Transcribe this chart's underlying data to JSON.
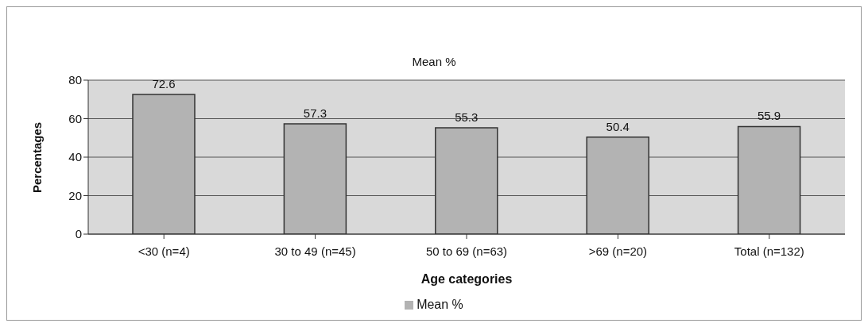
{
  "chart_data": {
    "type": "bar",
    "title": "Mean %",
    "xlabel": "Age categories",
    "ylabel": "Percentages",
    "categories": [
      "<30 (n=4)",
      "30 to 49 (n=45)",
      "50 to 69 (n=63)",
      ">69 (n=20)",
      "Total (n=132)"
    ],
    "series": [
      {
        "name": "Mean %",
        "color": "#b3b3b3",
        "values": [
          72.6,
          57.3,
          55.3,
          50.4,
          55.9
        ]
      }
    ],
    "ylim": [
      0,
      80
    ],
    "yticks": [
      0,
      20,
      40,
      60,
      80
    ],
    "grid": "y",
    "legend": "bottom",
    "data_labels": true
  }
}
